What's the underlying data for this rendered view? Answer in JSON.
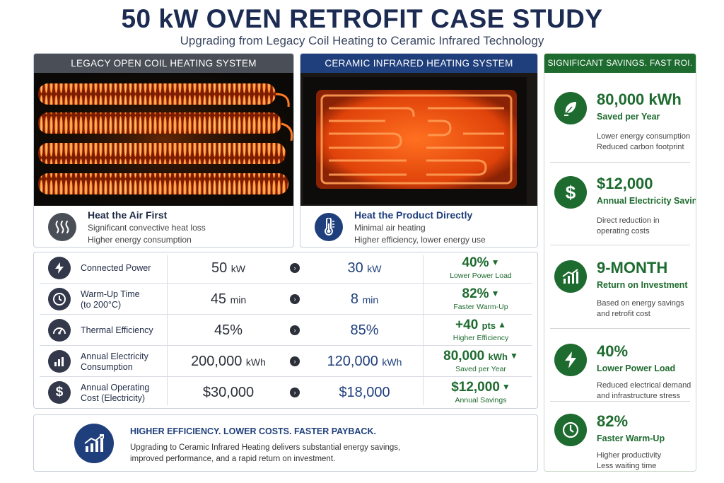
{
  "header": {
    "title": "50 kW OVEN RETROFIT CASE STUDY",
    "subtitle": "Upgrading from Legacy Coil Heating to Ceramic Infrared Technology"
  },
  "legacy_panel": {
    "header": "LEGACY OPEN COIL HEATING SYSTEM",
    "heading": "Heat the Air First",
    "line1": "Significant convective heat loss",
    "line2": "Higher energy consumption",
    "icon": "heat-waves-icon"
  },
  "ceramic_panel": {
    "header": "CERAMIC INFRARED HEATING SYSTEM",
    "heading": "Heat the Product Directly",
    "line1": "Minimal air heating",
    "line2": "Higher efficiency, lower energy use",
    "icon": "thermometer-icon"
  },
  "comparison": [
    {
      "label1": "Connected Power",
      "label2": "",
      "legacy": "50",
      "legacy_unit": "kW",
      "ceramic": "30",
      "ceramic_unit": "kW",
      "delta": "40%",
      "delta_unit": "",
      "delta_dir": "down",
      "delta_note": "Lower Power Load",
      "icon": "power-bolt-icon"
    },
    {
      "label1": "Warm-Up Time",
      "label2": "(to 200°C)",
      "legacy": "45",
      "legacy_unit": "min",
      "ceramic": "8",
      "ceramic_unit": "min",
      "delta": "82%",
      "delta_unit": "",
      "delta_dir": "down",
      "delta_note": "Faster Warm-Up",
      "icon": "clock-icon"
    },
    {
      "label1": "Thermal Efficiency",
      "label2": "",
      "legacy": "45%",
      "legacy_unit": "",
      "ceramic": "85%",
      "ceramic_unit": "",
      "delta": "+40",
      "delta_unit": "pts",
      "delta_dir": "up",
      "delta_note": "Higher Efficiency",
      "icon": "gauge-icon"
    },
    {
      "label1": "Annual Electricity",
      "label2": "Consumption",
      "legacy": "200,000",
      "legacy_unit": "kWh",
      "ceramic": "120,000",
      "ceramic_unit": "kWh",
      "delta": "80,000",
      "delta_unit": "kWh",
      "delta_dir": "down",
      "delta_note": "Saved per Year",
      "icon": "bar-chart-icon"
    },
    {
      "label1": "Annual Operating",
      "label2": "Cost (Electricity)",
      "legacy": "$30,000",
      "legacy_unit": "",
      "ceramic": "$18,000",
      "ceramic_unit": "",
      "delta": "$12,000",
      "delta_unit": "",
      "delta_dir": "down",
      "delta_note": "Annual Savings",
      "icon": "dollar-icon"
    }
  ],
  "banner": {
    "title": "HIGHER EFFICIENCY.  LOWER COSTS. FASTER PAYBACK.",
    "line1": "Upgrading to Ceramic Infrared Heating delivers substantial energy savings,",
    "line2": "improved performance, and a rapid return on investment.",
    "icon": "growth-chart-icon"
  },
  "savings": {
    "header": "SIGNIFICANT SAVINGS. FAST ROI.",
    "items": [
      {
        "big": "80,000 kWh",
        "sub": "Saved per Year",
        "d1": "Lower energy consumption",
        "d2": "Reduced carbon footprint",
        "icon": "leaf-plug-icon"
      },
      {
        "big": "$12,000",
        "sub": "Annual Electricity Savings",
        "d1": "Direct reduction in",
        "d2": "operating costs",
        "icon": "dollar-icon"
      },
      {
        "big": "9-MONTH",
        "sub": "Return on Investment",
        "d1": "Based on energy savings",
        "d2": "and retrofit cost",
        "icon": "growth-chart-icon"
      },
      {
        "big": "40%",
        "sub": "Lower Power Load",
        "d1": "Reduced electrical demand",
        "d2": "and infrastructure stress",
        "icon": "power-bolt-icon"
      },
      {
        "big": "82%",
        "sub": "Faster Warm-Up",
        "d1": "Higher productivity",
        "d2": "Less waiting time",
        "icon": "clock-icon"
      }
    ]
  },
  "colors": {
    "navy": "#1c2b52",
    "blue": "#1f3f7c",
    "green": "#1e6b2f",
    "slate": "#4a4f57",
    "glow": "#ff6a1a"
  }
}
